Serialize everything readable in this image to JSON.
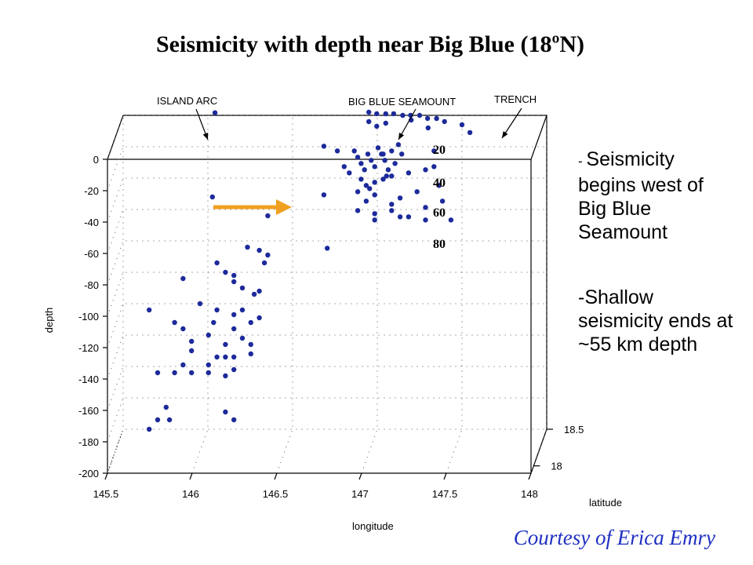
{
  "slide": {
    "title": "Seismicity with depth near Big Blue (18ºN)",
    "note1_dash": "- ",
    "note1_text": "Seismicity begins west of Big Blue Seamount",
    "note2_text": "-Shallow seismicity ends at ~55 km depth",
    "credit": "Courtesy of Erica Emry"
  },
  "chart_data": {
    "type": "scatter",
    "title": "",
    "xlabel": "longitude",
    "ylabel": "depth",
    "zlabel": "latitude",
    "xlim": [
      145.5,
      148
    ],
    "ylim": [
      -200,
      0
    ],
    "zlim": [
      17.9,
      18.5
    ],
    "x_ticks": [
      "145.5",
      "146",
      "146.5",
      "147",
      "147.5",
      "148"
    ],
    "y_ticks": [
      "0",
      "-20",
      "-40",
      "-60",
      "-80",
      "-100",
      "-120",
      "-140",
      "-160",
      "-180",
      "-200"
    ],
    "z_ticks": [
      "18",
      "18.5"
    ],
    "grid": true,
    "point_color": "#1c2a9a",
    "annotations": [
      {
        "text": "ISLAND ARC",
        "kind": "label"
      },
      {
        "text": "BIG BLUE SEAMOUNT",
        "kind": "label"
      },
      {
        "text": "TRENCH",
        "kind": "label"
      },
      {
        "text": "20",
        "kind": "depth-marker"
      },
      {
        "text": "40",
        "kind": "depth-marker"
      },
      {
        "text": "60",
        "kind": "depth-marker"
      },
      {
        "text": "80",
        "kind": "depth-marker"
      }
    ],
    "arrow_color": "#f0a020",
    "points": [
      [
        146.05,
        4,
        18.45
      ],
      [
        146.05,
        -45,
        18.35
      ],
      [
        146.95,
        2,
        18.5
      ],
      [
        147.0,
        2,
        18.48
      ],
      [
        147.05,
        1,
        18.5
      ],
      [
        147.1,
        2,
        18.48
      ],
      [
        147.15,
        0,
        18.5
      ],
      [
        147.2,
        1,
        18.48
      ],
      [
        147.25,
        0,
        18.5
      ],
      [
        147.3,
        -1,
        18.48
      ],
      [
        147.35,
        -2,
        18.5
      ],
      [
        147.4,
        -3,
        18.48
      ],
      [
        146.95,
        -4,
        18.5
      ],
      [
        147.0,
        -6,
        18.48
      ],
      [
        147.05,
        -5,
        18.5
      ],
      [
        147.2,
        -3,
        18.5
      ],
      [
        147.3,
        -8,
        18.5
      ],
      [
        147.5,
        -6,
        18.5
      ],
      [
        147.55,
        -10,
        18.48
      ],
      [
        146.7,
        -15,
        18.4
      ],
      [
        146.78,
        -18,
        18.4
      ],
      [
        146.82,
        -28,
        18.4
      ],
      [
        146.85,
        -32,
        18.4
      ],
      [
        146.88,
        -18,
        18.4
      ],
      [
        146.9,
        -22,
        18.4
      ],
      [
        146.92,
        -26,
        18.4
      ],
      [
        146.94,
        -30,
        18.4
      ],
      [
        146.96,
        -20,
        18.4
      ],
      [
        146.98,
        -24,
        18.4
      ],
      [
        147.0,
        -28,
        18.4
      ],
      [
        147.02,
        -16,
        18.4
      ],
      [
        147.04,
        -20,
        18.4
      ],
      [
        147.06,
        -24,
        18.4
      ],
      [
        147.08,
        -30,
        18.4
      ],
      [
        147.1,
        -18,
        18.4
      ],
      [
        147.12,
        -26,
        18.4
      ],
      [
        147.14,
        -14,
        18.4
      ],
      [
        147.16,
        -20,
        18.4
      ],
      [
        146.92,
        -36,
        18.4
      ],
      [
        146.95,
        -40,
        18.4
      ],
      [
        147.0,
        -38,
        18.4
      ],
      [
        147.05,
        -36,
        18.4
      ],
      [
        147.1,
        -34,
        18.4
      ],
      [
        146.9,
        -44,
        18.4
      ],
      [
        146.95,
        -50,
        18.4
      ],
      [
        147.0,
        -46,
        18.4
      ],
      [
        147.1,
        -52,
        18.4
      ],
      [
        147.15,
        -48,
        18.4
      ],
      [
        147.25,
        -44,
        18.4
      ],
      [
        147.3,
        -30,
        18.4
      ],
      [
        147.35,
        -18,
        18.4
      ],
      [
        147.38,
        -40,
        18.4
      ],
      [
        147.4,
        -50,
        18.4
      ],
      [
        147.45,
        -62,
        18.4
      ],
      [
        147.3,
        -62,
        18.4
      ],
      [
        147.2,
        -60,
        18.4
      ],
      [
        147.1,
        -56,
        18.4
      ],
      [
        147.0,
        -58,
        18.4
      ],
      [
        146.9,
        -56,
        18.4
      ],
      [
        146.7,
        -46,
        18.4
      ],
      [
        146.72,
        -80,
        18.4
      ],
      [
        147.35,
        -28,
        18.4
      ],
      [
        147.2,
        -32,
        18.4
      ],
      [
        147.15,
        -60,
        18.4
      ],
      [
        147.0,
        -62,
        18.4
      ],
      [
        147.3,
        -54,
        18.4
      ],
      [
        147.05,
        -20,
        18.4
      ],
      [
        147.07,
        -34,
        18.4
      ],
      [
        146.97,
        -42,
        18.4
      ],
      [
        146.4,
        -50,
        18.2
      ],
      [
        146.28,
        -70,
        18.2
      ],
      [
        146.35,
        -72,
        18.2
      ],
      [
        146.4,
        -75,
        18.2
      ],
      [
        146.1,
        -80,
        18.2
      ],
      [
        146.15,
        -86,
        18.2
      ],
      [
        146.2,
        -88,
        18.2
      ],
      [
        146.2,
        -92,
        18.2
      ],
      [
        146.25,
        -96,
        18.2
      ],
      [
        146.35,
        -98,
        18.2
      ],
      [
        146.38,
        -80,
        18.2
      ],
      [
        145.9,
        -90,
        18.2
      ],
      [
        146.0,
        -106,
        18.2
      ],
      [
        146.1,
        -110,
        18.2
      ],
      [
        146.2,
        -113,
        18.2
      ],
      [
        146.25,
        -110,
        18.2
      ],
      [
        146.3,
        -118,
        18.2
      ],
      [
        146.35,
        -115,
        18.2
      ],
      [
        145.85,
        -118,
        18.2
      ],
      [
        145.9,
        -122,
        18.2
      ],
      [
        145.95,
        -130,
        18.2
      ],
      [
        146.05,
        -126,
        18.2
      ],
      [
        145.95,
        -136,
        18.2
      ],
      [
        146.15,
        -132,
        18.2
      ],
      [
        146.2,
        -140,
        18.2
      ],
      [
        146.3,
        -138,
        18.2
      ],
      [
        145.9,
        -145,
        18.2
      ],
      [
        145.85,
        -150,
        18.2
      ],
      [
        145.95,
        -150,
        18.2
      ],
      [
        146.05,
        -150,
        18.2
      ],
      [
        146.15,
        -140,
        18.2
      ],
      [
        146.2,
        -148,
        18.2
      ],
      [
        145.7,
        -110,
        18.2
      ],
      [
        145.75,
        -150,
        18.2
      ],
      [
        145.8,
        -172,
        18.2
      ],
      [
        145.75,
        -180,
        18.2
      ],
      [
        145.7,
        -186,
        18.2
      ],
      [
        145.82,
        -180,
        18.2
      ],
      [
        146.15,
        -175,
        18.2
      ],
      [
        146.2,
        -180,
        18.2
      ],
      [
        146.1,
        -140,
        18.2
      ],
      [
        146.05,
        -145,
        18.2
      ],
      [
        146.15,
        -152,
        18.2
      ],
      [
        146.25,
        -128,
        18.2
      ],
      [
        146.3,
        -132,
        18.2
      ],
      [
        146.32,
        -100,
        18.2
      ],
      [
        146.2,
        -122,
        18.2
      ],
      [
        146.08,
        -118,
        18.2
      ]
    ]
  }
}
